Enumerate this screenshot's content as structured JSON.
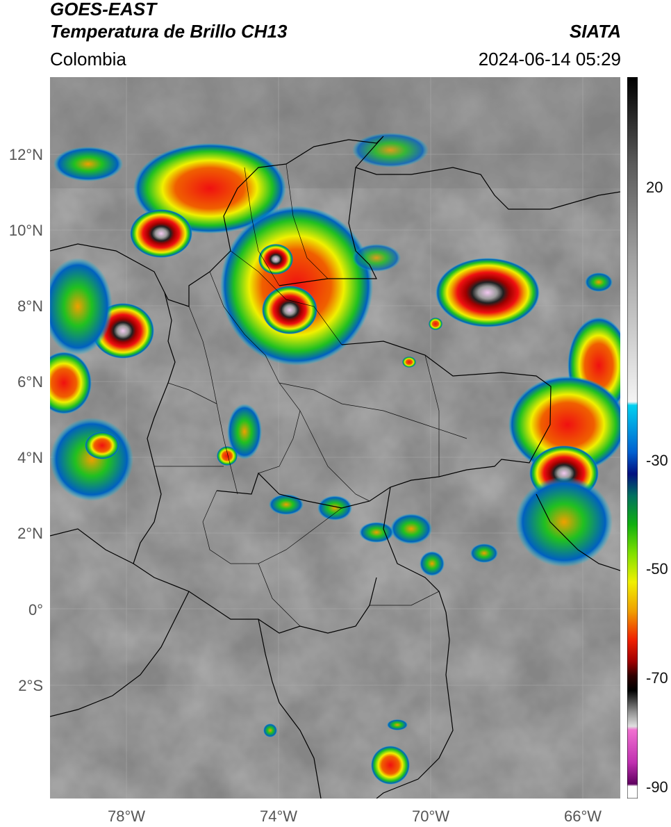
{
  "header": {
    "satellite": "GOES-EAST",
    "product": "Temperatura de Brillo CH13",
    "region": "Colombia",
    "source": "SIATA",
    "datetime": "2024-06-14 05:29"
  },
  "map_axes": {
    "lat_labels": [
      "12°N",
      "10°N",
      "8°N",
      "6°N",
      "4°N",
      "2°N",
      "0°",
      "2°S"
    ],
    "lon_labels": [
      "78°W",
      "74°W",
      "70°W",
      "66°W"
    ]
  },
  "colorbar": {
    "tick_labels": [
      "20",
      "-30",
      "-50",
      "-70",
      "-90"
    ]
  },
  "colors": {
    "background_gray": "#8a8a8a",
    "cloud_cold_red": "#e01010",
    "cloud_yellow": "#f0e000",
    "cloud_green": "#20c020",
    "cloud_blue": "#0050c0",
    "overshoot_pink": "#f0a0e0"
  }
}
